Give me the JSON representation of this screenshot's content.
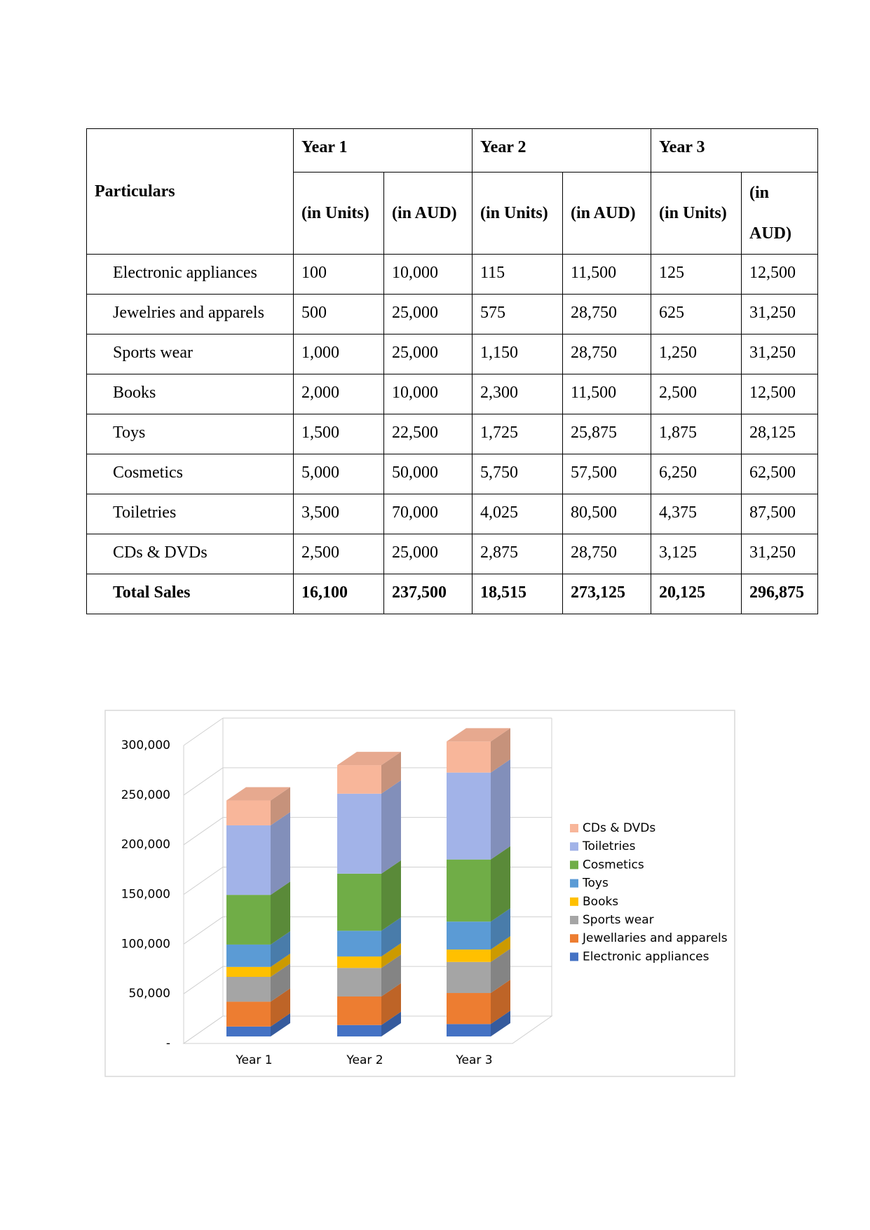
{
  "table": {
    "header": {
      "particulars": "Particulars",
      "years": [
        "Year 1",
        "Year 2",
        "Year 3"
      ],
      "sub": [
        "(in Units)",
        "(in AUD)",
        "(in Units)",
        "(in AUD)",
        "(in Units)",
        "(in AUD)"
      ]
    },
    "rows": [
      [
        "Electronic appliances",
        "100",
        "10,000",
        "115",
        "11,500",
        "125",
        "12,500"
      ],
      [
        "Jewelries and apparels",
        "500",
        "25,000",
        "575",
        "28,750",
        "625",
        "31,250"
      ],
      [
        "Sports wear",
        "1,000",
        "25,000",
        "1,150",
        "28,750",
        "1,250",
        "31,250"
      ],
      [
        "Books",
        "2,000",
        "10,000",
        "2,300",
        "11,500",
        "2,500",
        "12,500"
      ],
      [
        "Toys",
        "1,500",
        "22,500",
        "1,725",
        "25,875",
        "1,875",
        "28,125"
      ],
      [
        "Cosmetics",
        "5,000",
        "50,000",
        "5,750",
        "57,500",
        "6,250",
        "62,500"
      ],
      [
        "Toiletries",
        "3,500",
        "70,000",
        "4,025",
        "80,500",
        "4,375",
        "87,500"
      ],
      [
        "CDs & DVDs",
        "2,500",
        "25,000",
        "2,875",
        "28,750",
        "3,125",
        "31,250"
      ]
    ],
    "total": [
      "Total Sales",
      "16,100",
      "237,500",
      "18,515",
      "273,125",
      "20,125",
      "296,875"
    ]
  },
  "chart_data": {
    "type": "bar3d_stacked",
    "categories": [
      "Year 1",
      "Year 2",
      "Year 3"
    ],
    "series": [
      {
        "name": "Electronic appliances",
        "color": "#4472c4",
        "values": [
          10000,
          11500,
          12500
        ]
      },
      {
        "name": "Jewellaries and apparels",
        "color": "#ed7d31",
        "values": [
          25000,
          28750,
          31250
        ]
      },
      {
        "name": "Sports wear",
        "color": "#a5a5a5",
        "values": [
          25000,
          28750,
          31250
        ]
      },
      {
        "name": "Books",
        "color": "#ffc000",
        "values": [
          10000,
          11500,
          12500
        ]
      },
      {
        "name": "Toys",
        "color": "#5b9bd5",
        "values": [
          22500,
          25875,
          28125
        ]
      },
      {
        "name": "Cosmetics",
        "color": "#70ad47",
        "values": [
          50000,
          57500,
          62500
        ]
      },
      {
        "name": "Toiletries",
        "color": "#a2b3e8",
        "values": [
          70000,
          80500,
          87500
        ]
      },
      {
        "name": "CDs & DVDs",
        "color": "#f8b69a",
        "values": [
          25000,
          28750,
          31250
        ]
      }
    ],
    "ylim": [
      0,
      300000
    ],
    "yticks": [
      {
        "value": 0,
        "label": "-"
      },
      {
        "value": 50000,
        "label": "50,000"
      },
      {
        "value": 100000,
        "label": "100,000"
      },
      {
        "value": 150000,
        "label": "150,000"
      },
      {
        "value": 200000,
        "label": "200,000"
      },
      {
        "value": 250000,
        "label": "250,000"
      },
      {
        "value": 300000,
        "label": "300,000"
      }
    ],
    "grid": true,
    "legend": "right"
  }
}
